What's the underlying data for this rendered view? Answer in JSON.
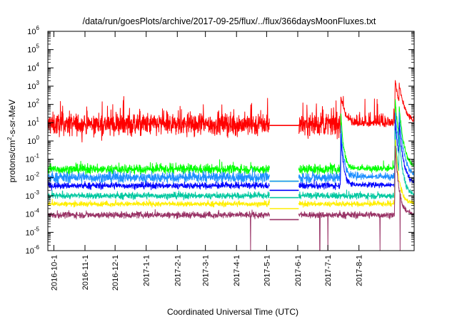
{
  "chart_data": {
    "type": "line",
    "title": "/data/run/goesPlots/archive/2017-09-25/flux/../flux/366daysMoonFluxes.txt",
    "xlabel": "Coordinated Universal Time (UTC)",
    "ylabel": {
      "prefix": "protons/cm",
      "sup": "2",
      "suffix": "-s-sr-MeV"
    },
    "yscale": "log",
    "ylim": [
      1e-06,
      1000000.0
    ],
    "xlim": [
      "2016-09-25",
      "2017-09-25"
    ],
    "x_ticks": [
      "2016-10-1",
      "2016-11-1",
      "2016-12-1",
      "2017-1-1",
      "2017-2-1",
      "2017-3-1",
      "2017-4-1",
      "2017-5-1",
      "2017-6-1",
      "2017-7-1",
      "2017-8-1"
    ],
    "x_tick_dates": [
      "2016-10-01",
      "2016-11-01",
      "2016-12-01",
      "2017-01-01",
      "2017-02-01",
      "2017-03-01",
      "2017-04-01",
      "2017-05-01",
      "2017-06-01",
      "2017-07-01",
      "2017-08-01"
    ],
    "y_ticks": [
      {
        "base": "10",
        "exp": "-6"
      },
      {
        "base": "10",
        "exp": "-5"
      },
      {
        "base": "10",
        "exp": "-4"
      },
      {
        "base": "10",
        "exp": "-3"
      },
      {
        "base": "10",
        "exp": "-2"
      },
      {
        "base": "10",
        "exp": "-1"
      },
      {
        "base": "10",
        "exp": "0"
      },
      {
        "base": "10",
        "exp": "1"
      },
      {
        "base": "10",
        "exp": "2"
      },
      {
        "base": "10",
        "exp": "3"
      },
      {
        "base": "10",
        "exp": "4"
      },
      {
        "base": "10",
        "exp": "5"
      },
      {
        "base": "10",
        "exp": "6"
      }
    ],
    "data_gap": [
      "2017-05-04",
      "2017-06-02"
    ],
    "grid": false,
    "legend": "none",
    "series": [
      {
        "color": "#ff0000",
        "baseline_log10": 0.9,
        "noise_log10": 0.55,
        "spike_log10": 1.1,
        "gap_value_log10": 0.85,
        "events": [
          {
            "date": "2017-07-14",
            "peak_log10": 2.4,
            "decay_days": 5
          },
          {
            "date": "2017-09-06",
            "peak_log10": 3.4,
            "decay_days": 6
          },
          {
            "date": "2017-09-10",
            "peak_log10": 3.2,
            "decay_days": 6
          }
        ],
        "dips": []
      },
      {
        "color": "#00ff00",
        "baseline_log10": -1.55,
        "noise_log10": 0.22,
        "spike_log10": 0.35,
        "gap_value_log10": -2.2,
        "events": [
          {
            "date": "2017-07-14",
            "peak_log10": 1.5,
            "decay_days": 3
          },
          {
            "date": "2017-09-06",
            "peak_log10": 2.3,
            "decay_days": 5
          },
          {
            "date": "2017-09-10",
            "peak_log10": 2.0,
            "decay_days": 5
          }
        ],
        "dips": []
      },
      {
        "color": "#1e90ff",
        "baseline_log10": -2.0,
        "noise_log10": 0.25,
        "spike_log10": 0.3,
        "gap_value_log10": -2.2,
        "events": [
          {
            "date": "2017-07-14",
            "peak_log10": 0.8,
            "decay_days": 3
          },
          {
            "date": "2017-09-06",
            "peak_log10": 1.8,
            "decay_days": 5
          },
          {
            "date": "2017-09-10",
            "peak_log10": 1.6,
            "decay_days": 5
          }
        ],
        "dips": []
      },
      {
        "color": "#0000ff",
        "baseline_log10": -2.45,
        "noise_log10": 0.15,
        "spike_log10": 0.2,
        "gap_value_log10": -2.7,
        "events": [
          {
            "date": "2017-07-14",
            "peak_log10": 0.3,
            "decay_days": 3
          },
          {
            "date": "2017-09-06",
            "peak_log10": 1.2,
            "decay_days": 5
          },
          {
            "date": "2017-09-10",
            "peak_log10": 1.0,
            "decay_days": 5
          }
        ],
        "dips": []
      },
      {
        "color": "#00c8a0",
        "baseline_log10": -3.0,
        "noise_log10": 0.15,
        "spike_log10": 0.2,
        "gap_value_log10": -3.1,
        "events": [
          {
            "date": "2017-09-06",
            "peak_log10": 0.6,
            "decay_days": 4
          },
          {
            "date": "2017-09-10",
            "peak_log10": 0.4,
            "decay_days": 4
          }
        ],
        "dips": []
      },
      {
        "color": "#ffee00",
        "baseline_log10": -3.45,
        "noise_log10": 0.12,
        "spike_log10": 0.2,
        "gap_value_log10": -3.7,
        "events": [
          {
            "date": "2017-09-06",
            "peak_log10": 0.2,
            "decay_days": 4
          }
        ],
        "dips": []
      },
      {
        "color": "#993366",
        "baseline_log10": -4.05,
        "noise_log10": 0.15,
        "spike_log10": 0.2,
        "gap_value_log10": -4.3,
        "events": [
          {
            "date": "2017-09-06",
            "peak_log10": -0.2,
            "decay_days": 4
          }
        ],
        "dips": [
          "2017-04-15",
          "2017-06-23",
          "2017-07-01",
          "2017-08-22",
          "2017-09-11"
        ]
      }
    ]
  }
}
